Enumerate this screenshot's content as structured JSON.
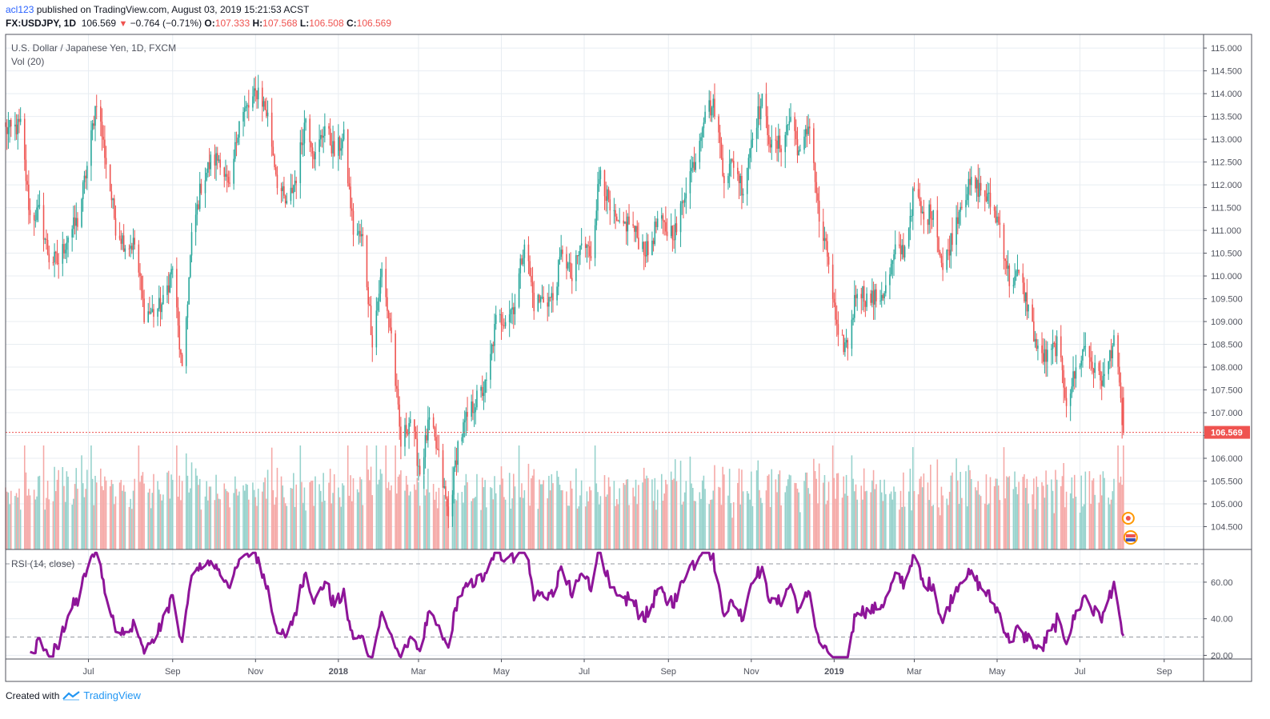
{
  "header": {
    "user": "acl123",
    "published": " published on TradingView.com, August 03, 2019 15:21:53 ACST",
    "symbol": "FX:USDJPY, 1D",
    "last": "106.569",
    "change": "−0.764 (−0.71%)",
    "o_label": "O:",
    "o": "107.333",
    "h_label": "H:",
    "h": "107.568",
    "l_label": "L:",
    "l": "106.508",
    "c_label": "C:",
    "c": "106.569"
  },
  "footer": {
    "created": "Created with",
    "brand": "TradingView"
  },
  "colors": {
    "up": "#26a69a",
    "down": "#ef5350",
    "vol_up": "#96d2cc",
    "vol_down": "#f5a8a6",
    "rsi": "#8e1599",
    "grid": "#e8edf2",
    "axis": "#50535e"
  },
  "chart_data": {
    "type": "candlestick",
    "title": "U.S. Dollar / Japanese Yen, 1D, FXCM",
    "volume_label": "Vol (20)",
    "rsi_label": "RSI (14, close)",
    "current_price_label": "106.569",
    "current_price": 106.569,
    "price_ylim": [
      104.0,
      115.3
    ],
    "price_ticks": [
      "115.000",
      "114.500",
      "114.000",
      "113.500",
      "113.000",
      "112.500",
      "112.000",
      "111.500",
      "111.000",
      "110.500",
      "110.000",
      "109.500",
      "109.000",
      "108.500",
      "108.000",
      "107.500",
      "107.000",
      "106.500",
      "106.000",
      "105.500",
      "105.000",
      "104.500"
    ],
    "rsi_ylim": [
      18,
      77
    ],
    "rsi_ticks": [
      "60.00",
      "40.00",
      "20.00"
    ],
    "rsi_bands": [
      70,
      30
    ],
    "x_ticks": [
      "Jul",
      "Sep",
      "Nov",
      "2018",
      "Mar",
      "May",
      "Jul",
      "Sep",
      "Nov",
      "2019",
      "Mar",
      "May",
      "Jul",
      "Sep"
    ],
    "x_tick_bold": [
      false,
      false,
      false,
      true,
      false,
      false,
      false,
      false,
      false,
      true,
      false,
      false,
      false,
      false
    ],
    "date_range": [
      "2017-05-01",
      "2019-09-30"
    ],
    "x_tick_dates": [
      "2017-07-01",
      "2017-09-01",
      "2017-11-01",
      "2018-01-01",
      "2018-03-01",
      "2018-05-01",
      "2018-07-01",
      "2018-09-01",
      "2018-11-01",
      "2019-01-01",
      "2019-03-01",
      "2019-05-01",
      "2019-07-01",
      "2019-09-01"
    ],
    "series_end": "2019-08-02",
    "close_anchors": [
      [
        "2017-05-05",
        113.2
      ],
      [
        "2017-05-12",
        113.3
      ],
      [
        "2017-05-19",
        111.3
      ],
      [
        "2017-05-26",
        111.4
      ],
      [
        "2017-06-02",
        110.4
      ],
      [
        "2017-06-09",
        110.3
      ],
      [
        "2017-06-16",
        110.9
      ],
      [
        "2017-06-23",
        111.2
      ],
      [
        "2017-06-30",
        112.4
      ],
      [
        "2017-07-07",
        113.9
      ],
      [
        "2017-07-14",
        112.5
      ],
      [
        "2017-07-21",
        111.1
      ],
      [
        "2017-07-28",
        110.7
      ],
      [
        "2017-08-04",
        110.7
      ],
      [
        "2017-08-11",
        109.2
      ],
      [
        "2017-08-18",
        109.2
      ],
      [
        "2017-08-25",
        109.4
      ],
      [
        "2017-09-01",
        110.2
      ],
      [
        "2017-09-08",
        107.8
      ],
      [
        "2017-09-15",
        110.8
      ],
      [
        "2017-09-22",
        112.0
      ],
      [
        "2017-09-29",
        112.5
      ],
      [
        "2017-10-06",
        112.6
      ],
      [
        "2017-10-13",
        111.8
      ],
      [
        "2017-10-20",
        113.5
      ],
      [
        "2017-10-27",
        113.7
      ],
      [
        "2017-11-03",
        114.1
      ],
      [
        "2017-11-10",
        113.5
      ],
      [
        "2017-11-17",
        112.1
      ],
      [
        "2017-11-24",
        111.5
      ],
      [
        "2017-12-01",
        112.2
      ],
      [
        "2017-12-08",
        113.5
      ],
      [
        "2017-12-15",
        112.6
      ],
      [
        "2017-12-22",
        113.3
      ],
      [
        "2017-12-29",
        112.7
      ],
      [
        "2018-01-05",
        113.0
      ],
      [
        "2018-01-12",
        111.0
      ],
      [
        "2018-01-19",
        110.8
      ],
      [
        "2018-01-26",
        108.6
      ],
      [
        "2018-02-02",
        110.1
      ],
      [
        "2018-02-09",
        108.7
      ],
      [
        "2018-02-16",
        106.3
      ],
      [
        "2018-02-23",
        106.9
      ],
      [
        "2018-03-02",
        105.7
      ],
      [
        "2018-03-09",
        106.8
      ],
      [
        "2018-03-16",
        106.0
      ],
      [
        "2018-03-23",
        104.7
      ],
      [
        "2018-03-30",
        106.3
      ],
      [
        "2018-04-06",
        106.9
      ],
      [
        "2018-04-13",
        107.3
      ],
      [
        "2018-04-20",
        107.6
      ],
      [
        "2018-04-27",
        109.0
      ],
      [
        "2018-05-04",
        109.1
      ],
      [
        "2018-05-11",
        109.4
      ],
      [
        "2018-05-18",
        110.8
      ],
      [
        "2018-05-25",
        109.4
      ],
      [
        "2018-06-01",
        109.5
      ],
      [
        "2018-06-08",
        109.5
      ],
      [
        "2018-06-15",
        110.6
      ],
      [
        "2018-06-22",
        109.9
      ],
      [
        "2018-06-29",
        110.7
      ],
      [
        "2018-07-06",
        110.5
      ],
      [
        "2018-07-13",
        112.4
      ],
      [
        "2018-07-20",
        111.4
      ],
      [
        "2018-07-27",
        111.0
      ],
      [
        "2018-08-03",
        111.2
      ],
      [
        "2018-08-10",
        110.8
      ],
      [
        "2018-08-17",
        110.5
      ],
      [
        "2018-08-24",
        111.2
      ],
      [
        "2018-08-31",
        111.0
      ],
      [
        "2018-09-07",
        111.0
      ],
      [
        "2018-09-14",
        112.0
      ],
      [
        "2018-09-21",
        112.6
      ],
      [
        "2018-09-28",
        113.7
      ],
      [
        "2018-10-05",
        113.7
      ],
      [
        "2018-10-12",
        112.2
      ],
      [
        "2018-10-19",
        112.5
      ],
      [
        "2018-10-26",
        111.9
      ],
      [
        "2018-11-02",
        113.2
      ],
      [
        "2018-11-09",
        113.8
      ],
      [
        "2018-11-16",
        112.8
      ],
      [
        "2018-11-23",
        112.9
      ],
      [
        "2018-11-30",
        113.5
      ],
      [
        "2018-12-07",
        112.6
      ],
      [
        "2018-12-14",
        113.4
      ],
      [
        "2018-12-21",
        111.2
      ],
      [
        "2018-12-28",
        110.3
      ],
      [
        "2019-01-04",
        108.5
      ],
      [
        "2019-01-11",
        108.5
      ],
      [
        "2019-01-18",
        109.8
      ],
      [
        "2019-01-25",
        109.5
      ],
      [
        "2019-02-01",
        109.5
      ],
      [
        "2019-02-08",
        109.7
      ],
      [
        "2019-02-15",
        110.5
      ],
      [
        "2019-02-22",
        110.6
      ],
      [
        "2019-03-01",
        111.9
      ],
      [
        "2019-03-08",
        111.2
      ],
      [
        "2019-03-15",
        111.5
      ],
      [
        "2019-03-22",
        110.1
      ],
      [
        "2019-03-29",
        110.9
      ],
      [
        "2019-04-05",
        111.7
      ],
      [
        "2019-04-12",
        112.0
      ],
      [
        "2019-04-19",
        111.9
      ],
      [
        "2019-04-26",
        111.6
      ],
      [
        "2019-05-03",
        111.1
      ],
      [
        "2019-05-10",
        109.9
      ],
      [
        "2019-05-17",
        110.0
      ],
      [
        "2019-05-24",
        109.3
      ],
      [
        "2019-05-31",
        108.3
      ],
      [
        "2019-06-07",
        108.2
      ],
      [
        "2019-06-14",
        108.5
      ],
      [
        "2019-06-21",
        107.3
      ],
      [
        "2019-06-28",
        107.9
      ],
      [
        "2019-07-05",
        108.5
      ],
      [
        "2019-07-12",
        107.9
      ],
      [
        "2019-07-19",
        107.7
      ],
      [
        "2019-07-26",
        108.7
      ],
      [
        "2019-08-02",
        106.57
      ]
    ]
  }
}
